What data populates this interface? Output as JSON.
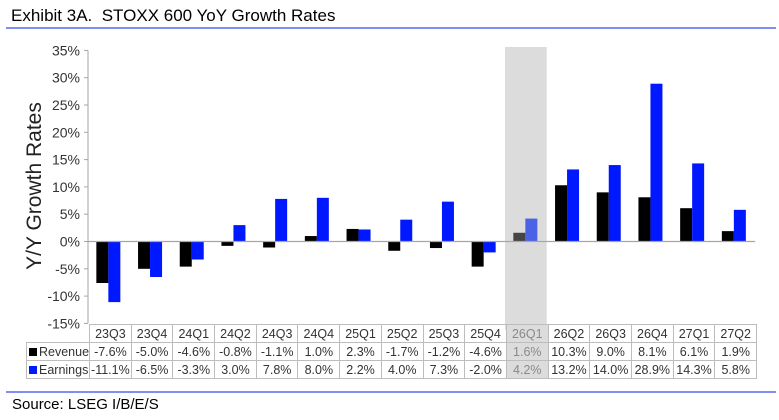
{
  "header": {
    "title": "Exhibit 3A.  STOXX 600 YoY Growth Rates"
  },
  "footer": {
    "source": "Source: LSEG I/B/E/S"
  },
  "colors": {
    "revenue": "#000000",
    "earnings": "#0018ff",
    "highlight_band": "#dcdcdc",
    "revenue_highlight": "#454545",
    "earnings_highlight": "#4a62e6",
    "rule": "#7f8ff0"
  },
  "chart_data": {
    "type": "bar",
    "title": "Exhibit 3A.  STOXX 600 YoY Growth Rates",
    "xlabel": "",
    "ylabel": "Y/Y Growth Rates",
    "ylim": [
      -15,
      35
    ],
    "yticks": [
      35,
      30,
      25,
      20,
      15,
      10,
      5,
      0,
      -5,
      -10,
      -15
    ],
    "ytick_labels": [
      "35%",
      "30%",
      "25%",
      "20%",
      "15%",
      "10%",
      "5%",
      "0%",
      "-5%",
      "-10%",
      "-15%"
    ],
    "grid": false,
    "legend": "data-table-below",
    "highlighted_category": "26Q1",
    "categories": [
      "23Q3",
      "23Q4",
      "24Q1",
      "24Q2",
      "24Q3",
      "24Q4",
      "25Q1",
      "25Q2",
      "25Q3",
      "25Q4",
      "26Q1",
      "26Q2",
      "26Q3",
      "26Q4",
      "27Q1",
      "27Q2"
    ],
    "series": [
      {
        "name": "Revenue",
        "values": [
          -7.6,
          -5.0,
          -4.6,
          -0.8,
          -1.1,
          1.0,
          2.3,
          -1.7,
          -1.2,
          -4.6,
          1.6,
          10.3,
          9.0,
          8.1,
          6.1,
          1.9
        ],
        "labels": [
          "-7.6%",
          "-5.0%",
          "-4.6%",
          "-0.8%",
          "-1.1%",
          "1.0%",
          "2.3%",
          "-1.7%",
          "-1.2%",
          "-4.6%",
          "1.6%",
          "10.3%",
          "9.0%",
          "8.1%",
          "6.1%",
          "1.9%"
        ]
      },
      {
        "name": "Earnings",
        "values": [
          -11.1,
          -6.5,
          -3.3,
          3.0,
          7.8,
          8.0,
          2.2,
          4.0,
          7.3,
          -2.0,
          4.2,
          13.2,
          14.0,
          28.9,
          14.3,
          5.8
        ],
        "labels": [
          "-11.1%",
          "-6.5%",
          "-3.3%",
          "3.0%",
          "7.8%",
          "8.0%",
          "2.2%",
          "4.0%",
          "7.3%",
          "-2.0%",
          "4.2%",
          "13.2%",
          "14.0%",
          "28.9%",
          "14.3%",
          "5.8%"
        ]
      }
    ]
  }
}
